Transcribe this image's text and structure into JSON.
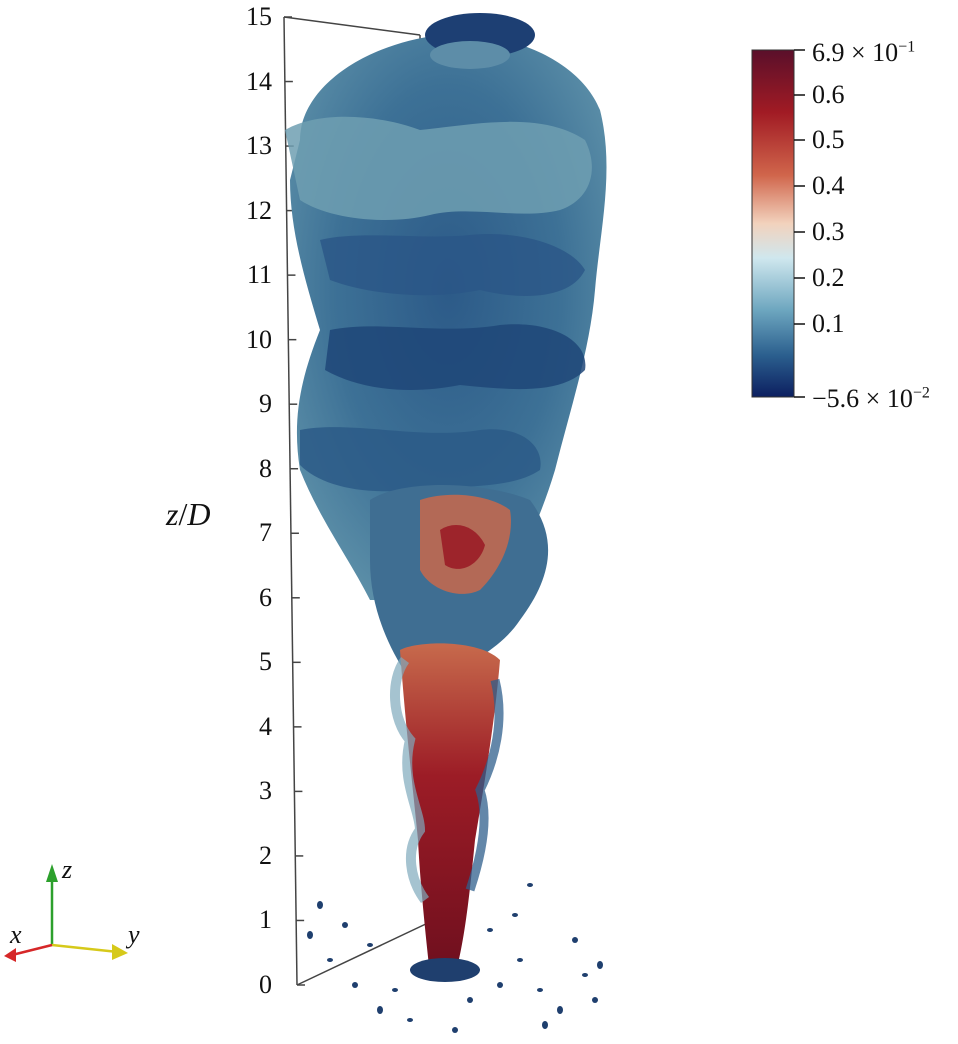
{
  "axis": {
    "title_var": "z",
    "title_sep": "/",
    "title_ref": "D",
    "ticks": [
      "15",
      "14",
      "13",
      "12",
      "11",
      "10",
      "9",
      "8",
      "7",
      "6",
      "5",
      "4",
      "3",
      "2",
      "1",
      "0"
    ]
  },
  "colorbar": {
    "max_label": "6.9 × 10",
    "max_exp": "−1",
    "min_label": "−5.6 × 10",
    "min_exp": "−2",
    "tick_labels": [
      "0.6",
      "0.5",
      "0.4",
      "0.3",
      "0.2",
      "0.1"
    ],
    "colors": [
      "#5a0f2a",
      "#a11b24",
      "#d0654b",
      "#f2d2bd",
      "#cfe7ee",
      "#6da6bf",
      "#2b5f8e",
      "#0c1f60"
    ]
  },
  "triad": {
    "x": "x",
    "y": "y",
    "z": "z"
  },
  "colors": {
    "plume_dark": "#1c3f72",
    "plume_mid": "#3f7397",
    "plume_light": "#8fbcc6",
    "core_red": "#8e1420",
    "core_orange": "#d87a55"
  }
}
